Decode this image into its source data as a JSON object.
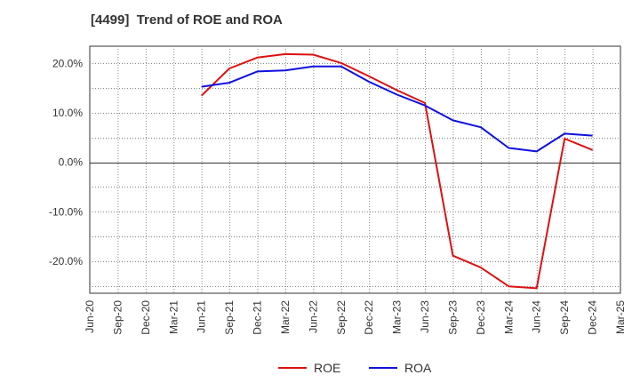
{
  "chart_data": {
    "type": "line",
    "title": "[4499]  Trend of ROE and ROA",
    "xlabel": "",
    "ylabel": "",
    "x_ticks": [
      "Jun-20",
      "Sep-20",
      "Dec-20",
      "Mar-21",
      "Jun-21",
      "Sep-21",
      "Dec-21",
      "Mar-22",
      "Jun-22",
      "Sep-22",
      "Dec-22",
      "Mar-23",
      "Jun-23",
      "Sep-23",
      "Dec-23",
      "Mar-24",
      "Jun-24",
      "Sep-24",
      "Dec-24",
      "Mar-25"
    ],
    "y_ticks": [
      -20,
      -10,
      0,
      10,
      20
    ],
    "y_tick_labels": [
      "-20.0%",
      "-10.0%",
      "0.0%",
      "10.0%",
      "20.0%"
    ],
    "ylim": [
      -26.5,
      23.5
    ],
    "grid": true,
    "legend_position": "bottom",
    "series": [
      {
        "name": "ROE",
        "color": "#dd1111",
        "x": [
          "Jun-21",
          "Sep-21",
          "Dec-21",
          "Mar-22",
          "Jun-22",
          "Sep-22",
          "Dec-22",
          "Mar-23",
          "Jun-23",
          "Sep-23",
          "Dec-23",
          "Mar-24",
          "Jun-24",
          "Sep-24",
          "Dec-24"
        ],
        "values": [
          13.5,
          19.0,
          21.2,
          21.9,
          21.8,
          20.1,
          17.4,
          14.6,
          12.0,
          -18.9,
          -21.3,
          -25.1,
          -25.5,
          4.8,
          2.5
        ]
      },
      {
        "name": "ROA",
        "color": "#1111dd",
        "x": [
          "Jun-21",
          "Sep-21",
          "Dec-21",
          "Mar-22",
          "Jun-22",
          "Sep-22",
          "Dec-22",
          "Mar-23",
          "Jun-23",
          "Sep-23",
          "Dec-23",
          "Mar-24",
          "Jun-24",
          "Sep-24",
          "Dec-24"
        ],
        "values": [
          15.3,
          16.1,
          18.4,
          18.6,
          19.4,
          19.4,
          16.3,
          13.7,
          11.5,
          8.5,
          7.1,
          2.9,
          2.2,
          5.8,
          5.4
        ]
      }
    ]
  }
}
